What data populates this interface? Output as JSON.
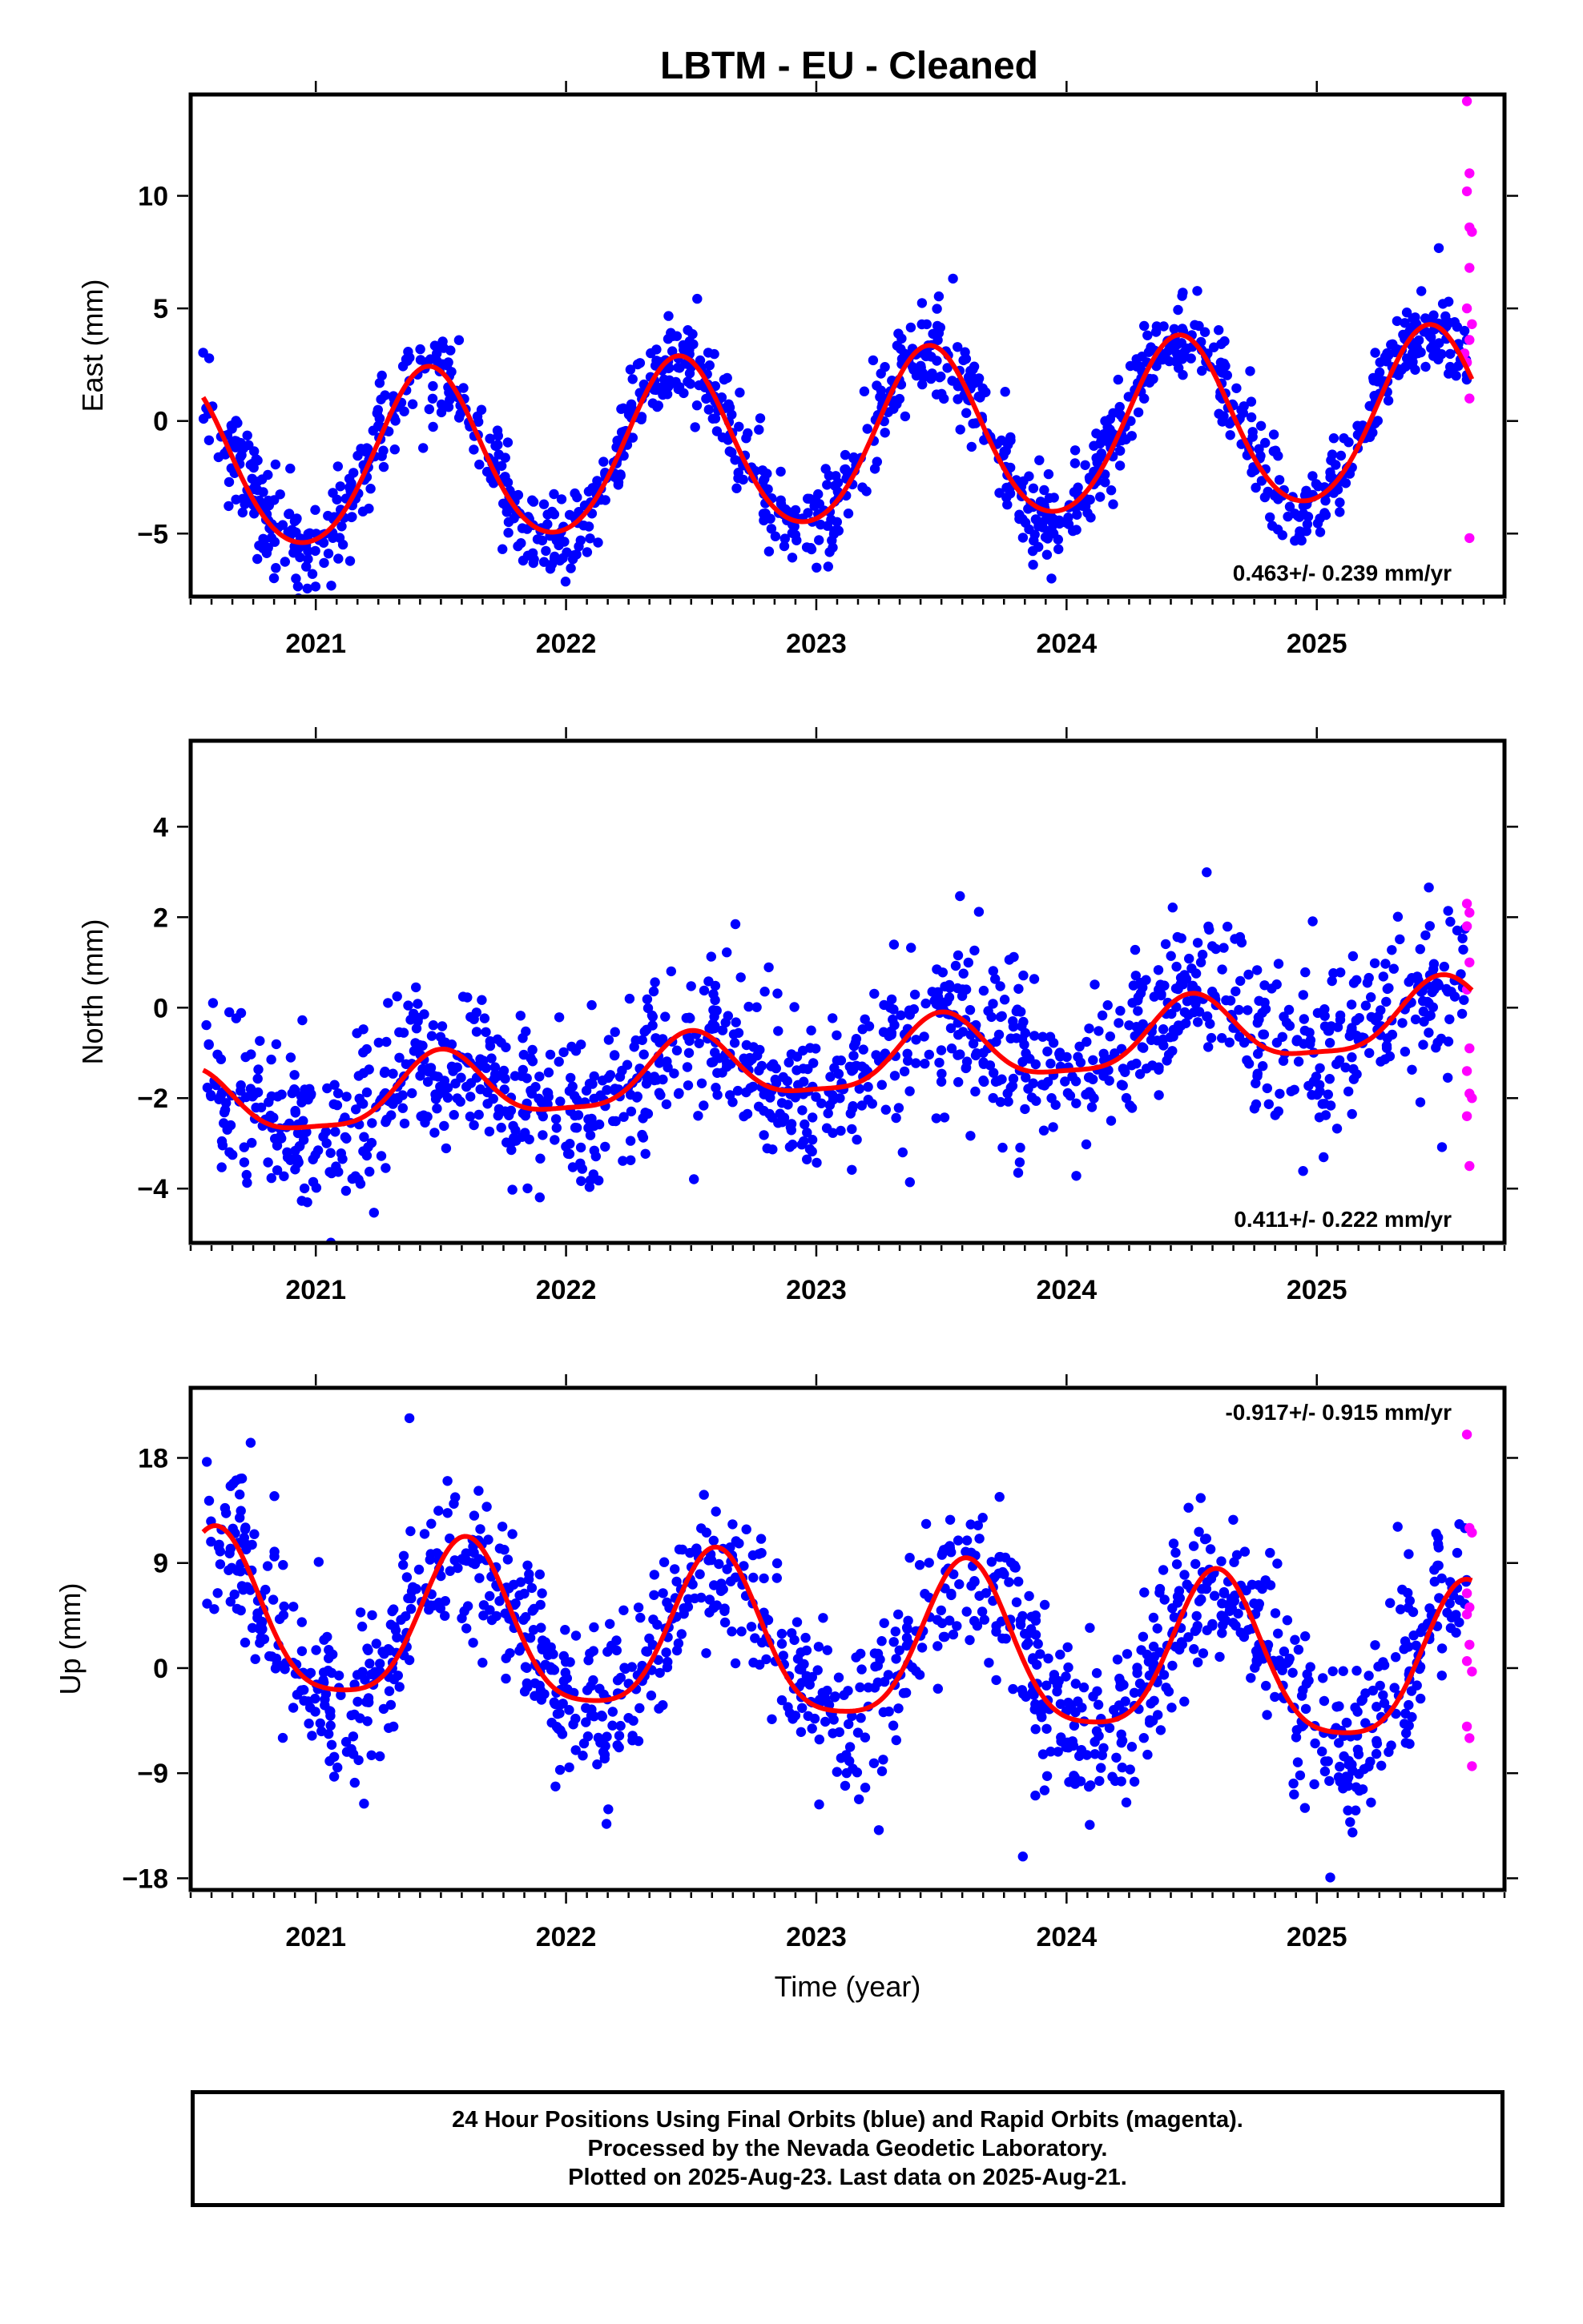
{
  "title": "LBTM  - EU - Cleaned",
  "footer": {
    "line1": "24 Hour Positions Using Final Orbits (blue) and Rapid Orbits (magenta).",
    "line2": "Processed by the Nevada Geodetic Laboratory.",
    "line3": "Plotted on 2025-Aug-23. Last data on 2025-Aug-21."
  },
  "colors": {
    "final": "#0000ff",
    "rapid": "#ff00ff",
    "fit": "#ff0000"
  },
  "chart_data": [
    {
      "type": "scatter",
      "ylabel": "East (mm)",
      "xlabel": "",
      "xlim": [
        2020.5,
        2025.75
      ],
      "ylim": [
        -7.8,
        14.5
      ],
      "yticks": [
        -5,
        0,
        5,
        10
      ],
      "xticks": [
        2021,
        2022,
        2023,
        2024,
        2025
      ],
      "rate": "0.463+/- 0.239 mm/yr",
      "rate_position": "bottom-right",
      "series": [
        {
          "kind": "final",
          "x_start": 2020.55,
          "x_end": 2025.6,
          "amplitude": 3.9,
          "phase": 2021.45,
          "offset": -1.0,
          "trend": 0.463,
          "noise": 1.0,
          "n": 1250,
          "seed": 11
        },
        {
          "kind": "rapid",
          "values": [
            [
              2025.6,
              14.2
            ],
            [
              2025.61,
              11.0
            ],
            [
              2025.6,
              10.2
            ],
            [
              2025.61,
              8.6
            ],
            [
              2025.62,
              8.4
            ],
            [
              2025.61,
              6.8
            ],
            [
              2025.6,
              5.0
            ],
            [
              2025.61,
              3.6
            ],
            [
              2025.6,
              2.6
            ],
            [
              2025.61,
              1.0
            ],
            [
              2025.61,
              -5.2
            ],
            [
              2025.62,
              4.3
            ],
            [
              2025.59,
              3.0
            ]
          ]
        },
        {
          "kind": "fit",
          "x_start": 2020.55,
          "x_end": 2025.62,
          "amplitude": 3.8,
          "phase": 2021.45,
          "offset": -1.0,
          "trend": 0.463,
          "semi": 0.35
        }
      ]
    },
    {
      "type": "scatter",
      "ylabel": "North (mm)",
      "xlabel": "",
      "xlim": [
        2020.5,
        2025.75
      ],
      "ylim": [
        -5.2,
        5.9
      ],
      "yticks": [
        -4,
        -2,
        0,
        2,
        4
      ],
      "xticks": [
        2021,
        2022,
        2023,
        2024,
        2025
      ],
      "rate": "0.411+/- 0.222 mm/yr",
      "rate_position": "bottom-right",
      "series": [
        {
          "kind": "final",
          "x_start": 2020.55,
          "x_end": 2025.6,
          "amplitude": 0.7,
          "phase": 2021.5,
          "offset": -1.2,
          "trend": 0.411,
          "noise": 0.85,
          "n": 1250,
          "seed": 23
        },
        {
          "kind": "rapid",
          "values": [
            [
              2025.6,
              2.3
            ],
            [
              2025.61,
              2.1
            ],
            [
              2025.6,
              1.8
            ],
            [
              2025.61,
              1.0
            ],
            [
              2025.6,
              0.4
            ],
            [
              2025.61,
              -0.9
            ],
            [
              2025.6,
              -1.4
            ],
            [
              2025.61,
              -1.9
            ],
            [
              2025.62,
              -2.0
            ],
            [
              2025.6,
              -2.4
            ],
            [
              2025.61,
              -3.5
            ]
          ]
        },
        {
          "kind": "fit",
          "x_start": 2020.55,
          "x_end": 2025.62,
          "amplitude": 0.75,
          "phase": 2021.5,
          "offset": -1.25,
          "trend": 0.411,
          "semi": 0.2
        }
      ]
    },
    {
      "type": "scatter",
      "ylabel": "Up (mm)",
      "xlabel": "Time (year)",
      "xlim": [
        2020.5,
        2025.75
      ],
      "ylim": [
        -19,
        24
      ],
      "yticks": [
        -18,
        -9,
        0,
        9,
        18
      ],
      "xticks": [
        2021,
        2022,
        2023,
        2024,
        2025
      ],
      "rate": "-0.917+/- 0.915 mm/yr",
      "rate_position": "top-right",
      "series": [
        {
          "kind": "final",
          "x_start": 2020.55,
          "x_end": 2025.6,
          "amplitude": 6.8,
          "phase": 2021.6,
          "offset": 1.8,
          "trend": -0.917,
          "noise": 3.4,
          "n": 1250,
          "seed": 37
        },
        {
          "kind": "rapid",
          "values": [
            [
              2025.6,
              20.0
            ],
            [
              2025.61,
              12.0
            ],
            [
              2025.62,
              11.6
            ],
            [
              2025.6,
              6.4
            ],
            [
              2025.61,
              5.2
            ],
            [
              2025.6,
              4.6
            ],
            [
              2025.61,
              2.0
            ],
            [
              2025.6,
              0.6
            ],
            [
              2025.62,
              -0.3
            ],
            [
              2025.6,
              -5.0
            ],
            [
              2025.61,
              -6.0
            ],
            [
              2025.62,
              -8.4
            ]
          ]
        },
        {
          "kind": "fit",
          "x_start": 2020.55,
          "x_end": 2025.62,
          "amplitude": 6.8,
          "phase": 2021.6,
          "offset": 1.8,
          "trend": -0.917,
          "semi": 1.4
        }
      ]
    }
  ]
}
